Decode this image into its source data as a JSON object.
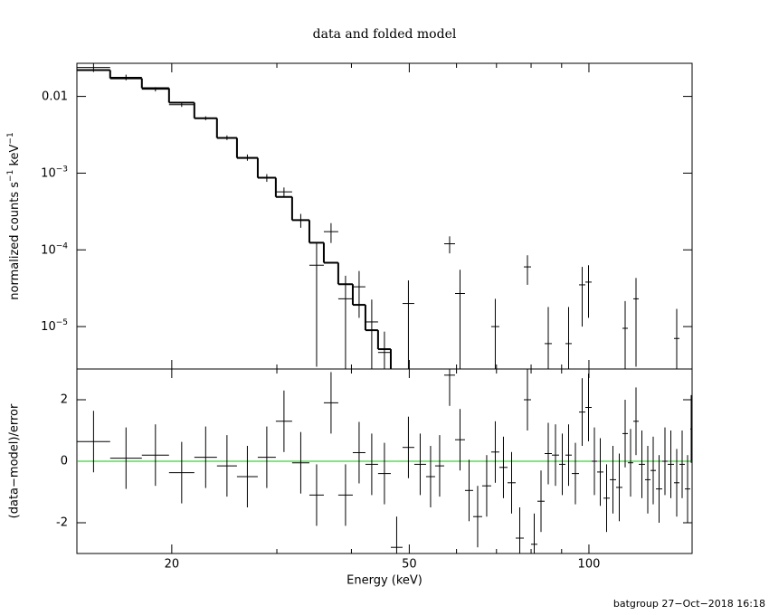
{
  "chart_data": [
    {
      "type": "step-errorbar",
      "title": "data and folded model",
      "ylabel": [
        {
          "text": "normalized counts s",
          "sup": false
        },
        {
          "text": "−1",
          "sup": true
        },
        {
          "text": " keV",
          "sup": false
        },
        {
          "text": "−1",
          "sup": true
        }
      ],
      "xscale": "log",
      "yscale": "log",
      "xlim": [
        13.87,
        148.89
      ],
      "ylim": [
        2.8e-06,
        0.027
      ],
      "yticks": [
        {
          "value": 0.01,
          "label": "0.01"
        },
        {
          "value": 0.001,
          "label": "10",
          "exponent": "−3"
        },
        {
          "value": 0.0001,
          "label": "10",
          "exponent": "−4"
        },
        {
          "value": 1e-05,
          "label": "10",
          "exponent": "−5"
        }
      ],
      "color": "#000000",
      "bins": [
        13.87,
        15.77,
        17.82,
        19.79,
        21.82,
        23.81,
        25.72,
        27.87,
        29.88,
        31.82,
        34.01,
        35.96,
        38.02,
        40.21,
        42.22,
        44.33,
        46.56,
        48.72,
        50.98,
        53.35,
        55.24,
        57.21,
        59.66,
        61.99,
        63.97,
        66.24,
        68.59,
        70.78,
        73.05,
        75.38,
        77.79,
        79.99,
        81.97,
        84.29,
        86.68,
        89.13,
        91.34,
        93.6,
        96.25,
        98.63,
        101.07,
        103.21,
        105.76,
        108.37,
        111.05,
        113.8,
        116.21,
        118.67,
        121.18,
        124.18,
        126.81,
        129.49,
        132.69,
        135.5,
        138.85,
        141.79,
        144.79,
        147.85,
        148.89
      ],
      "data": {
        "values": [
          0.0238,
          0.0177,
          0.0124,
          0.0078,
          0.0052,
          0.0029,
          0.0016,
          0.00087,
          0.00057,
          0.000244,
          6.3e-05,
          0.000173,
          2.3e-05,
          3.3e-05,
          1.15e-05,
          4.6e-06,
          null,
          2e-05,
          null,
          null,
          null,
          0.00012,
          2.7e-05,
          null,
          null,
          null,
          1e-05,
          null,
          null,
          null,
          6e-05,
          null,
          null,
          6e-06,
          null,
          null,
          6e-06,
          null,
          3.5e-05,
          3.8e-05,
          null,
          null,
          null,
          null,
          null,
          9.5e-06,
          null,
          2.3e-05,
          null,
          null,
          null,
          null,
          null,
          null,
          7e-06,
          null,
          null,
          null
        ],
        "errors": [
          0.003,
          0.0015,
          0.0008,
          0.0005,
          0.0003,
          0.0002,
          0.00015,
          0.0001,
          8e-05,
          5e-05,
          6e-05,
          5e-05,
          2.3e-05,
          2e-05,
          1.1e-05,
          4e-06,
          null,
          2e-05,
          null,
          null,
          null,
          3e-05,
          2.8e-05,
          null,
          null,
          null,
          1.3e-05,
          null,
          null,
          null,
          2.5e-05,
          null,
          null,
          1.2e-05,
          null,
          null,
          1.2e-05,
          null,
          2.5e-05,
          2.5e-05,
          null,
          null,
          null,
          null,
          null,
          1.2e-05,
          null,
          2e-05,
          null,
          null,
          null,
          null,
          null,
          null,
          1e-05,
          null,
          null,
          null
        ]
      },
      "model": {
        "values": [
          0.022,
          0.0172,
          0.0128,
          0.0083,
          0.0052,
          0.00288,
          0.00158,
          0.00087,
          0.00049,
          0.000244,
          0.000124,
          6.8e-05,
          3.57e-05,
          1.92e-05,
          8.97e-06,
          5.08e-06,
          null,
          null,
          null,
          null,
          null,
          null,
          null,
          null,
          null,
          null,
          null,
          null,
          null,
          null,
          null,
          null,
          null,
          null,
          null,
          null,
          null,
          null,
          null,
          null,
          null,
          null,
          null,
          null,
          null,
          null,
          null,
          null,
          null,
          null,
          null,
          null,
          null,
          null,
          null,
          null,
          null,
          null
        ]
      }
    },
    {
      "type": "errorbar",
      "ylabel": "(data−model)/error",
      "xlabel": "Energy (keV)",
      "xscale": "log",
      "xlim": [
        13.87,
        148.89
      ],
      "xticks": [
        20,
        50,
        100
      ],
      "xminorticks": [
        30,
        40,
        60,
        70,
        80,
        90
      ],
      "ylim": [
        -3,
        3
      ],
      "yticks": [
        2,
        0,
        -2
      ],
      "color": "#000000",
      "values": [
        0.64,
        0.1,
        0.2,
        -0.37,
        0.13,
        -0.15,
        -0.5,
        0.13,
        1.3,
        -0.05,
        -1.1,
        1.9,
        -1.1,
        0.28,
        -0.1,
        -0.4,
        -2.8,
        0.45,
        -0.1,
        -0.5,
        -0.15,
        2.8,
        0.7,
        -0.95,
        -1.8,
        -0.8,
        0.3,
        -0.2,
        -0.7,
        -2.5,
        2.0,
        -2.7,
        -1.3,
        0.25,
        0.2,
        -0.1,
        0.2,
        -0.4,
        1.6,
        1.75,
        0,
        -0.35,
        -1.2,
        -0.6,
        -0.85,
        0.9,
        -0.05,
        1.3,
        -0.1,
        -0.6,
        -0.3,
        -0.9,
        0,
        -0.1,
        -0.7,
        -0.1,
        -0.9,
        1.05
      ],
      "errors": [
        1,
        1,
        1,
        1,
        1,
        1,
        1,
        1,
        1,
        1,
        1,
        1,
        1,
        1,
        1,
        1,
        1,
        1,
        1,
        1,
        1,
        1,
        1,
        1,
        1,
        1,
        1,
        1,
        1,
        1,
        1,
        1,
        1,
        1,
        1,
        1,
        1,
        1,
        1.1,
        1.1,
        1.1,
        1.1,
        1.1,
        1.1,
        1.1,
        1.1,
        1.1,
        1.1,
        1.1,
        1.1,
        1.1,
        1.1,
        1.1,
        1.1,
        1.1,
        1.1,
        1.1,
        1.1
      ],
      "reference_line": {
        "value": 0,
        "color": "#00cc00"
      }
    }
  ],
  "footer": "batgroup 27−Oct−2018 16:18"
}
